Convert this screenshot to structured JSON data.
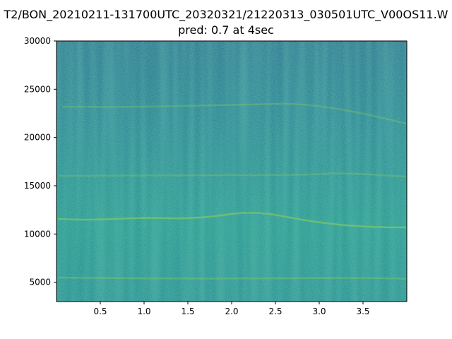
{
  "chart_data": {
    "type": "spectrogram",
    "title": "T2/BON_20210211-131700UTC_20320321/21220313_030501UTC_V00OS11.W",
    "subtitle": "pred: 0.7 at 4sec",
    "xlim": [
      0,
      4
    ],
    "ylim": [
      3000,
      30000
    ],
    "xticks": [
      0.5,
      {
        "value": 1,
        "label": "1.0"
      },
      1.5,
      {
        "value": 2,
        "label": "2.0"
      },
      2.5,
      {
        "value": 3,
        "label": "3.0"
      },
      3.5
    ],
    "yticks": [
      5000,
      10000,
      15000,
      20000,
      25000,
      30000
    ],
    "colormap": "viridis"
  }
}
